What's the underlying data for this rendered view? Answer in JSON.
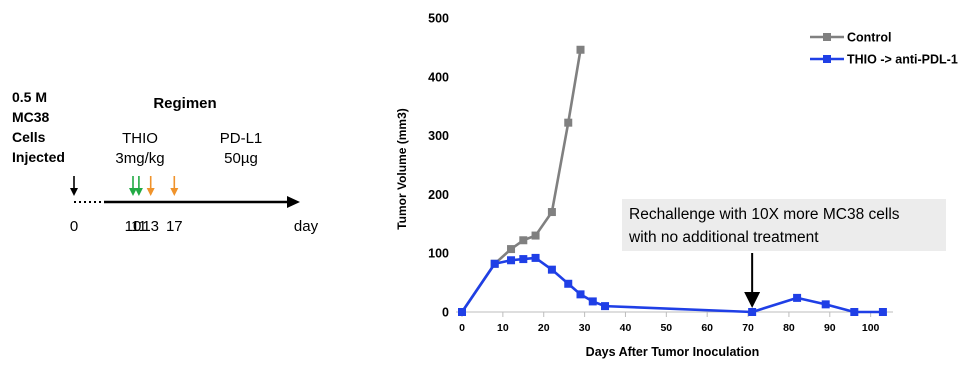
{
  "colors": {
    "control": "#808080",
    "treated": "#1f3fe6",
    "thio_arrow": "#22aa44",
    "pdl1_arrow": "#f0932b",
    "callout_bg": "#ececec"
  },
  "schematic": {
    "injection_label_lines": [
      "0.5 M",
      "MC38",
      "Cells",
      "Injected"
    ],
    "regimen_title": "Regimen",
    "thio_label": "THIO",
    "thio_dose": "3mg/kg",
    "pdl1_label": "PD-L1",
    "pdl1_dose": "50µg",
    "timeline_ticks": [
      {
        "label": "0",
        "day": 0,
        "arrow": "injection"
      },
      {
        "label": "10",
        "day": 10,
        "arrow": "thio"
      },
      {
        "label": "11",
        "day": 11,
        "arrow": "thio"
      },
      {
        "label": "13",
        "day": 13,
        "arrow": "pdl1"
      },
      {
        "label": "17",
        "day": 17,
        "arrow": "pdl1"
      }
    ],
    "unit_label": "day"
  },
  "chart_data": {
    "type": "line",
    "title": "",
    "xlabel": "Days After Tumor Inoculation",
    "ylabel": "Tumor Volume (mm3)",
    "xlim": [
      0,
      104
    ],
    "ylim": [
      0,
      500
    ],
    "xticks": [
      0,
      10,
      20,
      30,
      40,
      50,
      60,
      70,
      80,
      90,
      100
    ],
    "yticks": [
      0,
      100,
      200,
      300,
      400,
      500
    ],
    "grid": false,
    "legend_position": "top-right",
    "series": [
      {
        "name": "Control",
        "color": "#808080",
        "marker": "square",
        "x": [
          0,
          8,
          12,
          15,
          18,
          22,
          26,
          29
        ],
        "y": [
          0,
          82,
          107,
          122,
          130,
          170,
          322,
          446
        ]
      },
      {
        "name": "THIO -> anti-PDL-1",
        "color": "#1f3fe6",
        "marker": "square",
        "x": [
          0,
          8,
          12,
          15,
          18,
          22,
          26,
          29,
          32,
          35,
          71,
          82,
          89,
          96,
          103
        ],
        "y": [
          0,
          82,
          88,
          90,
          92,
          72,
          48,
          30,
          18,
          10,
          0,
          24,
          13,
          0,
          0
        ]
      }
    ],
    "annotation": {
      "text_lines": [
        "Rechallenge with 10X more MC38 cells",
        "with no additional treatment"
      ],
      "arrow_x": 71,
      "arrow_y": 0
    }
  }
}
